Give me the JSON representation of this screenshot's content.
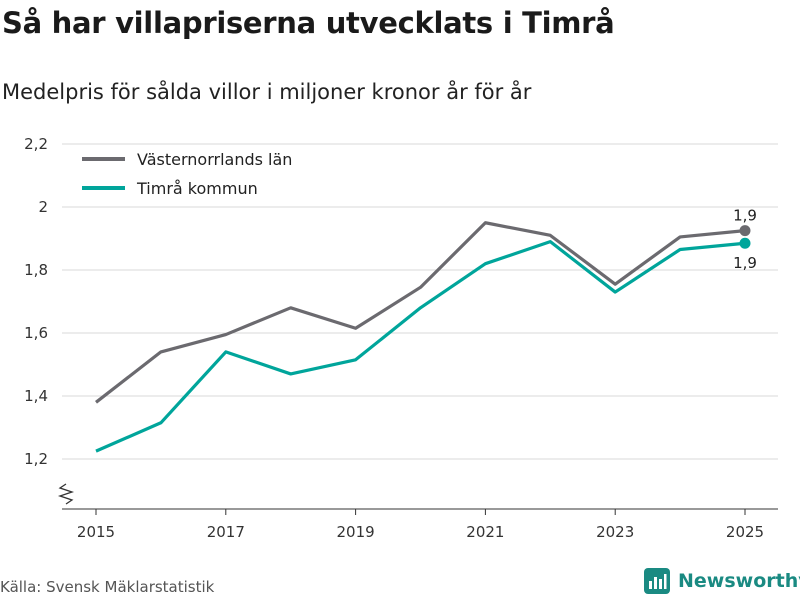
{
  "title": "Så har villapriserna utvecklats i Timrå",
  "subtitle": "Medelpris för sålda villor i miljoner kronor år för år",
  "source": "Källa: Svensk Mäklarstatistik",
  "brand": "Newsworthy",
  "colors": {
    "grey": "#6b6a6f",
    "teal": "#00a59b",
    "grid": "#d9d9d9",
    "brand": "#1a8a82"
  },
  "chart_data": {
    "type": "line",
    "title": "Så har villapriserna utvecklats i Timrå",
    "subtitle": "Medelpris för sålda villor i miljoner kronor år för år",
    "xlabel": "",
    "ylabel": "",
    "x": [
      2015,
      2016,
      2017,
      2018,
      2019,
      2020,
      2021,
      2022,
      2023,
      2024,
      2025
    ],
    "xticks": [
      2015,
      2017,
      2019,
      2021,
      2023,
      2025
    ],
    "xtick_labels": [
      "2015",
      "2017",
      "2019",
      "2021",
      "2023",
      "2025"
    ],
    "ylim": [
      1.05,
      2.2
    ],
    "yticks": [
      1.2,
      1.4,
      1.6,
      1.8,
      2.0,
      2.2
    ],
    "ytick_labels": [
      "1,2",
      "1,4",
      "1,6",
      "1,8",
      "2",
      "2,2"
    ],
    "grid": true,
    "axis_break": true,
    "legend_position": "top-left",
    "series": [
      {
        "name": "Västernorrlands län",
        "color": "#6b6a6f",
        "values": [
          1.38,
          1.54,
          1.595,
          1.68,
          1.615,
          1.745,
          1.95,
          1.91,
          1.755,
          1.905,
          1.925
        ],
        "end_label": "1,9"
      },
      {
        "name": "Timrå kommun",
        "color": "#00a59b",
        "values": [
          1.225,
          1.315,
          1.54,
          1.47,
          1.515,
          1.68,
          1.82,
          1.89,
          1.73,
          1.865,
          1.885
        ],
        "end_label": "1,9"
      }
    ]
  }
}
